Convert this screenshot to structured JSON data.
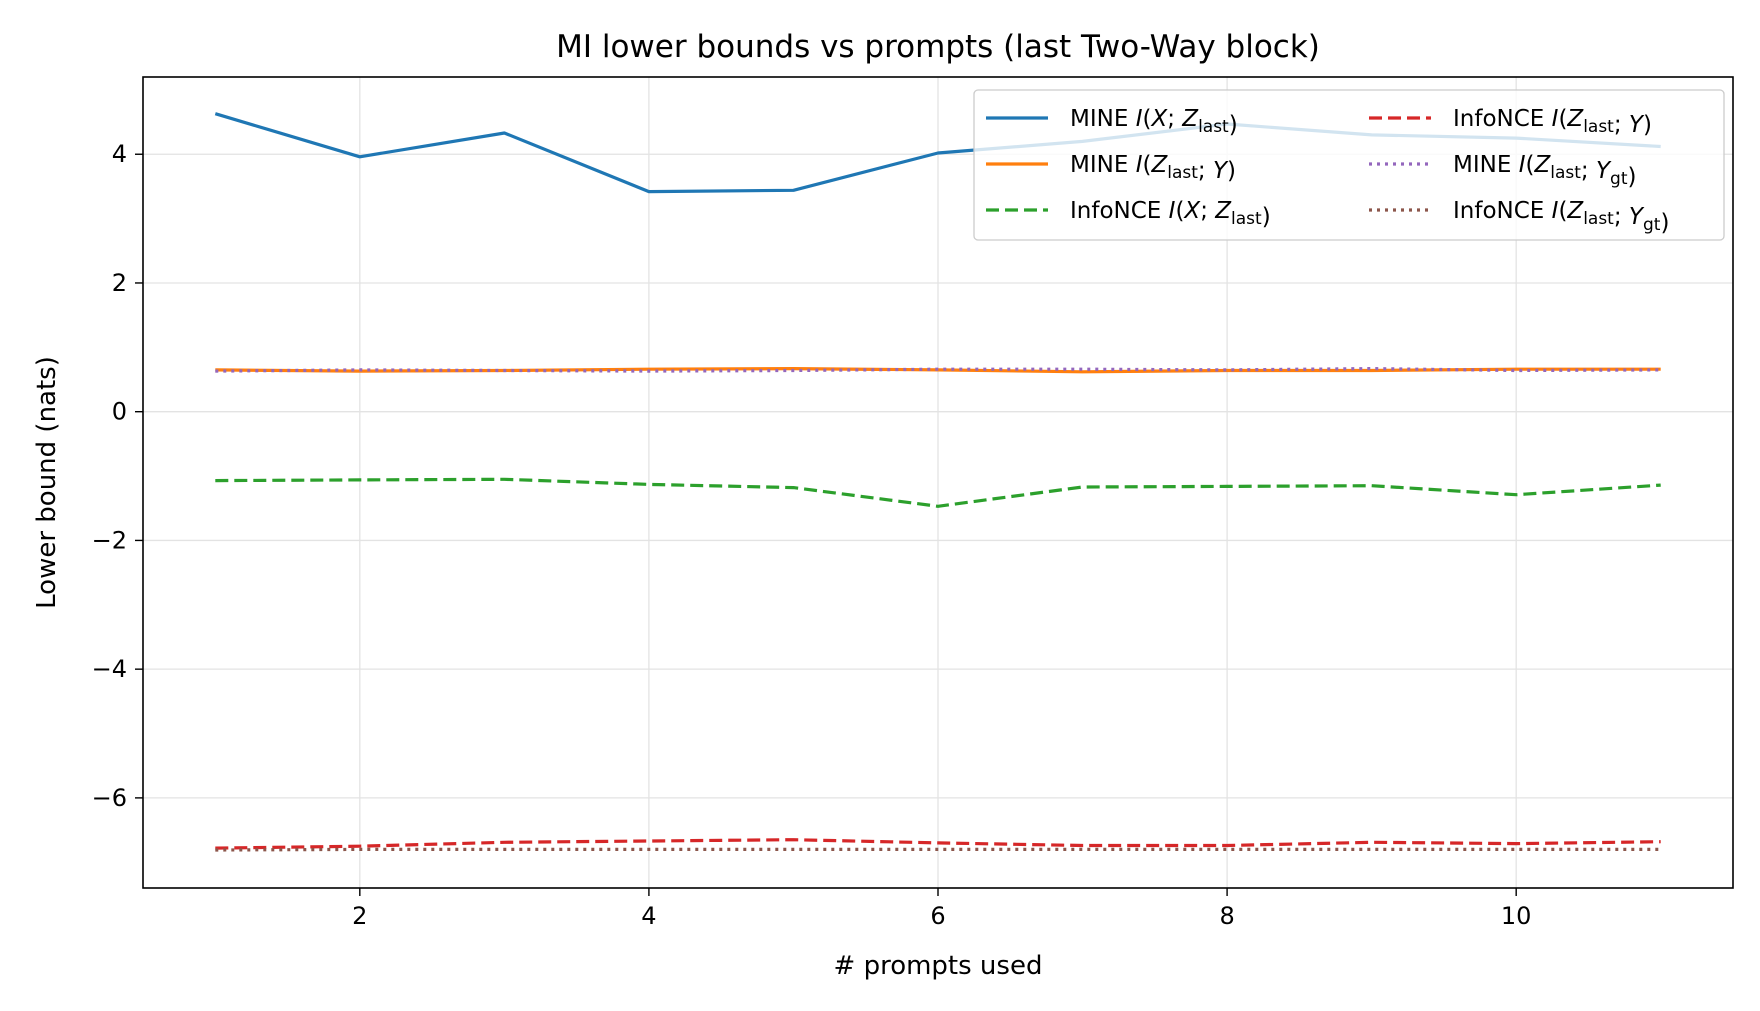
{
  "chart_data": {
    "type": "line",
    "title": "MI lower bounds vs prompts (last Two-Way block)",
    "xlabel": "# prompts used",
    "ylabel": "Lower bound (nats)",
    "xlim": [
      0.5,
      11.5
    ],
    "ylim": [
      -7.4,
      5.2
    ],
    "xticks": [
      2,
      4,
      6,
      8,
      10
    ],
    "yticks": [
      -6,
      -4,
      -2,
      0,
      2,
      4
    ],
    "grid": true,
    "legend_position": "top-right",
    "x": [
      1,
      2,
      3,
      4,
      5,
      6,
      7,
      8,
      9,
      10,
      11
    ],
    "series": [
      {
        "name": "MINE  I(X; Zlast)",
        "label_parts": [
          "MINE  ",
          "I",
          "(",
          "X",
          "; ",
          "Z",
          "last",
          ")"
        ],
        "color": "#1f77b4",
        "style": "solid",
        "values": [
          4.63,
          3.96,
          4.33,
          3.42,
          3.44,
          4.02,
          4.2,
          4.47,
          4.3,
          4.25,
          4.12
        ]
      },
      {
        "name": "MINE  I(Zlast; Y)",
        "label_parts": [
          "MINE  ",
          "I",
          "(",
          "Z",
          "last",
          "; ",
          "Y",
          ")"
        ],
        "color": "#ff7f0e",
        "style": "solid",
        "values": [
          0.65,
          0.63,
          0.64,
          0.66,
          0.67,
          0.65,
          0.62,
          0.64,
          0.64,
          0.66,
          0.66
        ]
      },
      {
        "name": "InfoNCE  I(X; Zlast)",
        "label_parts": [
          "InfoNCE  ",
          "I",
          "(",
          "X",
          "; ",
          "Z",
          "last",
          ")"
        ],
        "color": "#2ca02c",
        "style": "dashed",
        "values": [
          -1.07,
          -1.06,
          -1.05,
          -1.13,
          -1.18,
          -1.47,
          -1.17,
          -1.16,
          -1.15,
          -1.29,
          -1.14
        ]
      },
      {
        "name": "InfoNCE  I(Zlast; Y)",
        "label_parts": [
          "InfoNCE  ",
          "I",
          "(",
          "Z",
          "last",
          "; ",
          "Y",
          ")"
        ],
        "color": "#d62728",
        "style": "dashed",
        "values": [
          -6.78,
          -6.75,
          -6.69,
          -6.67,
          -6.65,
          -6.7,
          -6.74,
          -6.74,
          -6.69,
          -6.71,
          -6.68
        ]
      },
      {
        "name": "MINE  I(Zlast; Ygt)",
        "label_parts": [
          "MINE  ",
          "I",
          "(",
          "Z",
          "last",
          "; ",
          "Y",
          "gt",
          ")"
        ],
        "color": "#9467bd",
        "style": "dotted",
        "values": [
          0.63,
          0.65,
          0.64,
          0.63,
          0.64,
          0.66,
          0.66,
          0.65,
          0.67,
          0.64,
          0.65
        ]
      },
      {
        "name": "InfoNCE  I(Zlast; Ygt)",
        "label_parts": [
          "InfoNCE  ",
          "I",
          "(",
          "Z",
          "last",
          "; ",
          "Y",
          "gt",
          ")"
        ],
        "color": "#8c564b",
        "style": "dotted",
        "values": [
          -6.81,
          -6.8,
          -6.8,
          -6.8,
          -6.8,
          -6.8,
          -6.8,
          -6.8,
          -6.8,
          -6.8,
          -6.8
        ]
      }
    ]
  }
}
